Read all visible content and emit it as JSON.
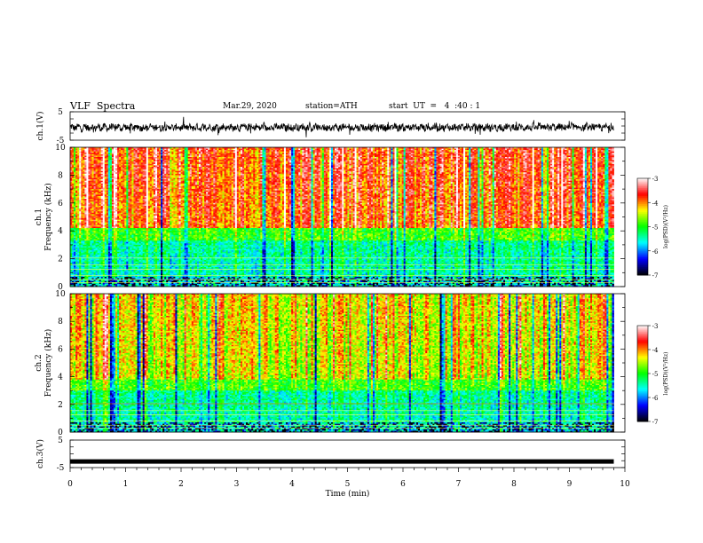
{
  "header": {
    "title": "VLF  Spectra",
    "date": "Mar.29, 2020",
    "station": "station=ATH",
    "start": "start  UT  =   4  :40 : 1"
  },
  "colors": {
    "spectrogram_scale": [
      "#000000",
      "#0000ff",
      "#00ffff",
      "#00ff00",
      "#ffff00",
      "#ff0000",
      "#ffffff"
    ],
    "trace": "#000000"
  },
  "chart_data": [
    {
      "type": "line",
      "panel": "ch1-waveform",
      "ylabel": "ch.1(V)",
      "ylim": [
        -5,
        5
      ],
      "y_ticks": [
        "5",
        "-5"
      ],
      "x_range_min": [
        0,
        9.8
      ],
      "description_level": "noisy trace around -0.5 V with amplitude about ±1.5 V"
    },
    {
      "type": "heatmap",
      "panel": "ch1-spectrogram",
      "ylabel": "Frequency  (kHz)",
      "channel_label": "ch.1",
      "ylim": [
        0,
        10
      ],
      "y_ticks": [
        "0",
        "2",
        "4",
        "6",
        "8",
        "10"
      ],
      "x_range_min": [
        0,
        9.8
      ],
      "bands": [
        {
          "from_khz": 0,
          "to_khz": 0.7,
          "level": "mixed -7 to -5"
        },
        {
          "from_khz": 0.7,
          "to_khz": 3.3,
          "level": "-5 to -6"
        },
        {
          "from_khz": 3.3,
          "to_khz": 4.2,
          "level": "-4.5 to -5"
        },
        {
          "from_khz": 4.2,
          "to_khz": 10,
          "level": "-3.5 to -4.5"
        }
      ],
      "colorbar": {
        "label": "log(PSD)(V²/Hz)",
        "ticks": [
          "-3",
          "-4",
          "-5",
          "-6",
          "-7"
        ],
        "range": [
          -7,
          -3
        ]
      }
    },
    {
      "type": "heatmap",
      "panel": "ch2-spectrogram",
      "ylabel": "Frequency  (kHz)",
      "channel_label": "ch.2",
      "ylim": [
        0,
        10
      ],
      "y_ticks": [
        "0",
        "2",
        "4",
        "6",
        "8",
        "10"
      ],
      "x_range_min": [
        0,
        9.8
      ],
      "bands": [
        {
          "from_khz": 0,
          "to_khz": 0.7,
          "level": "mixed -6 to -5"
        },
        {
          "from_khz": 0.7,
          "to_khz": 3.0,
          "level": "-5 to -6"
        },
        {
          "from_khz": 3.0,
          "to_khz": 3.8,
          "level": "-4.5 to -5"
        },
        {
          "from_khz": 3.8,
          "to_khz": 10,
          "level": "-4 to -5"
        }
      ],
      "colorbar": {
        "label": "log(PSD)(V²/Hz)",
        "ticks": [
          "-3",
          "-4",
          "-5",
          "-6",
          "-7"
        ],
        "range": [
          -7,
          -3
        ]
      }
    },
    {
      "type": "line",
      "panel": "ch3-waveform",
      "ylabel": "ch.3(V)",
      "ylim": [
        -5,
        5
      ],
      "y_ticks": [
        "5",
        "-5"
      ],
      "x_range_min": [
        0,
        9.8
      ],
      "level_v": -2.8
    }
  ],
  "x_axis": {
    "label": "Time  (min)",
    "range": [
      0,
      10
    ],
    "ticks": [
      "0",
      "1",
      "2",
      "3",
      "4",
      "5",
      "6",
      "7",
      "8",
      "9",
      "10"
    ]
  }
}
